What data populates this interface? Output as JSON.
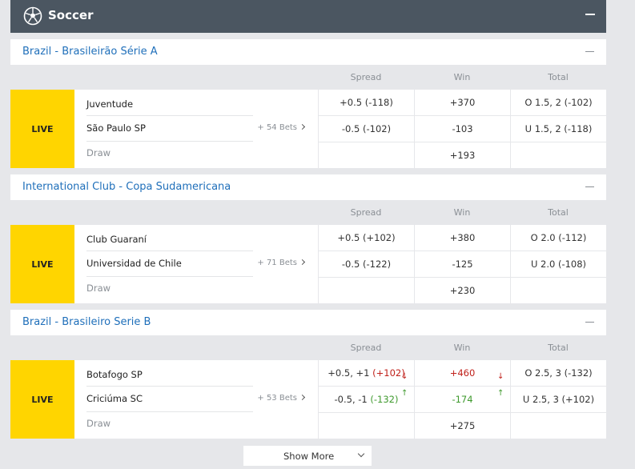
{
  "sport": {
    "title": "Soccer",
    "icon": "soccer-ball-icon"
  },
  "columns": {
    "spread": "Spread",
    "win": "Win",
    "total": "Total"
  },
  "live_label": "LIVE",
  "leagues": [
    {
      "name": "Brazil - Brasileirão Série A",
      "team1": "Juventude",
      "team2": "São Paulo SP",
      "draw": "Draw",
      "bets": "+ 54 Bets",
      "spread1": "+0.5 (-118)",
      "spread2": "-0.5 (-102)",
      "win1": "+370",
      "win2": "-103",
      "win_draw": "+193",
      "total1": "O 1.5, 2 (-102)",
      "total2": "U 1.5, 2 (-118)"
    },
    {
      "name": "International Club - Copa Sudamericana",
      "team1": "Club Guaraní",
      "team2": "Universidad de Chile",
      "draw": "Draw",
      "bets": "+ 71 Bets",
      "spread1": "+0.5 (+102)",
      "spread2": "-0.5 (-122)",
      "win1": "+380",
      "win2": "-125",
      "win_draw": "+230",
      "total1": "O 2.0 (-112)",
      "total2": "U 2.0 (-108)"
    },
    {
      "name": "Brazil - Brasileiro Serie B",
      "team1": "Botafogo SP",
      "team2": "Criciúma SC",
      "draw": "Draw",
      "bets": "+ 53 Bets",
      "spread1_base": "+0.5, +1",
      "spread1_odds": "(+102)",
      "spread2_base": "-0.5, -1",
      "spread2_odds": "(-132)",
      "win1": "+460",
      "win2": "-174",
      "win_draw": "+275",
      "total1": "O 2.5, 3 (-132)",
      "total2": "U 2.5, 3 (+102)",
      "down_arrow": "↓",
      "up_arrow": "↑"
    }
  ],
  "show_more": "Show More",
  "colors": {
    "header_bg": "#4b5661",
    "live_bg": "#ffd500",
    "link": "#1f6fba",
    "down": "#c0211b",
    "up": "#3f9a2e"
  }
}
